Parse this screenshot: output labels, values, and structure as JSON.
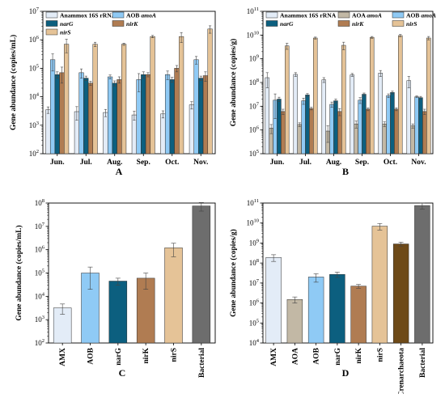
{
  "colors": {
    "Anammox": "#e3ecf7",
    "AMX": "#e3ecf7",
    "AOA": "#c2b8a5",
    "AOB": "#8fcaf5",
    "narG": "#0c5f7f",
    "nirK": "#b07c52",
    "nirS": "#e5c397",
    "Crenarchaeota": "#6e4a18",
    "Bacterial": "#6d6d6d"
  },
  "chart_data": [
    {
      "panel": "A",
      "type": "bar",
      "yscale": "log",
      "ylim_exp": [
        2,
        7
      ],
      "ylabel": "Gene abundance (copies/mL)",
      "categories": [
        "Jun.",
        "Jul.",
        "Aug.",
        "Sep.",
        "Oct.",
        "Nov."
      ],
      "legend": [
        {
          "key": "Anammox",
          "text": "Anammox 16S rRNA",
          "italic": ""
        },
        {
          "key": "AOB",
          "text": "AOB ",
          "italic": "amoA"
        },
        {
          "key": "narG",
          "text": "",
          "italic": "narG"
        },
        {
          "key": "nirK",
          "text": "",
          "italic": "nirK"
        },
        {
          "key": "nirS",
          "text": "",
          "italic": "nirS"
        }
      ],
      "series": [
        {
          "key": "Anammox",
          "values": [
            3500,
            3000,
            2800,
            2300,
            2500,
            5200
          ],
          "errors": [
            900,
            1500,
            800,
            800,
            700,
            1500
          ]
        },
        {
          "key": "AOB",
          "values": [
            200000,
            70000,
            50000,
            40000,
            60000,
            200000
          ],
          "errors": [
            120000,
            25000,
            8000,
            25000,
            20000,
            60000
          ]
        },
        {
          "key": "narG",
          "values": [
            60000,
            45000,
            30000,
            60000,
            40000,
            45000
          ],
          "errors": [
            15000,
            8000,
            6000,
            15000,
            8000,
            8000
          ]
        },
        {
          "key": "nirK",
          "values": [
            70000,
            30000,
            40000,
            60000,
            100000,
            55000
          ],
          "errors": [
            40000,
            5000,
            10000,
            10000,
            25000,
            20000
          ]
        },
        {
          "key": "nirS",
          "values": [
            700000,
            700000,
            700000,
            1300000,
            1300000,
            2400000
          ],
          "errors": [
            350000,
            120000,
            60000,
            120000,
            500000,
            700000
          ]
        }
      ]
    },
    {
      "panel": "B",
      "type": "bar",
      "yscale": "log",
      "ylim_exp": [
        5,
        11
      ],
      "ylabel": "Gene abundance (copies/g)",
      "categories": [
        "Jun.",
        "Jul.",
        "Aug.",
        "Sep.",
        "Oct.",
        "Nov."
      ],
      "legend": [
        {
          "key": "Anammox",
          "text": "Anammox 16S rRNA",
          "italic": ""
        },
        {
          "key": "AOA",
          "text": "AOA ",
          "italic": "amoA"
        },
        {
          "key": "AOB",
          "text": "AOB ",
          "italic": "amoA"
        },
        {
          "key": "narG",
          "text": "",
          "italic": "narG"
        },
        {
          "key": "nirK",
          "text": "",
          "italic": "nirK"
        },
        {
          "key": "nirS",
          "text": "",
          "italic": "nirS"
        }
      ],
      "series": [
        {
          "key": "Anammox",
          "values": [
            160000000,
            220000000,
            130000000,
            210000000,
            250000000,
            120000000
          ],
          "errors": [
            100000000,
            40000000,
            30000000,
            30000000,
            70000000,
            60000000
          ]
        },
        {
          "key": "AOA",
          "values": [
            1200000,
            1700000,
            900000,
            1800000,
            1800000,
            1500000
          ],
          "errors": [
            500000,
            300000,
            600000,
            600000,
            400000,
            300000
          ]
        },
        {
          "key": "AOB",
          "values": [
            18000000,
            17000000,
            12000000,
            18000000,
            28000000,
            25000000
          ],
          "errors": [
            15000000,
            5000000,
            3000000,
            5000000,
            5000000,
            2000000
          ]
        },
        {
          "key": "narG",
          "values": [
            20000000,
            30000000,
            17000000,
            32000000,
            38000000,
            23000000
          ],
          "errors": [
            4000000,
            4000000,
            3000000,
            4000000,
            5000000,
            3000000
          ]
        },
        {
          "key": "nirK",
          "values": [
            6000000,
            8000000,
            6000000,
            7500000,
            7500000,
            6000000
          ],
          "errors": [
            1500000,
            1000000,
            2000000,
            1000000,
            1000000,
            1500000
          ]
        },
        {
          "key": "nirS",
          "values": [
            3500000000,
            7500000000,
            3700000000,
            8000000000,
            9500000000,
            7500000000
          ],
          "errors": [
            1000000000,
            700000000,
            1300000000,
            700000000,
            1000000000,
            1200000000
          ]
        }
      ]
    },
    {
      "panel": "C",
      "type": "bar",
      "yscale": "log",
      "ylim_exp": [
        2,
        8
      ],
      "ylabel": "Gene abundance (copies/mL)",
      "categories": [
        "AMX",
        "AOB",
        "narG",
        "nirK",
        "nirS",
        "Bacterial"
      ],
      "category_keys": [
        "AMX",
        "AOB",
        "narG",
        "nirK",
        "nirS",
        "Bacterial"
      ],
      "values": [
        3200,
        100000,
        45000,
        60000,
        1200000,
        75000000
      ],
      "errors": [
        1500,
        80000,
        15000,
        40000,
        700000,
        30000000
      ]
    },
    {
      "panel": "D",
      "type": "bar",
      "yscale": "log",
      "ylim_exp": [
        4,
        11
      ],
      "ylabel": "Gene abundance (copies/g)",
      "categories": [
        "AMX",
        "AOA",
        "AOB",
        "narG",
        "nirK",
        "nirS",
        "Crenarchaeota",
        "Bacterial"
      ],
      "category_keys": [
        "AMX",
        "AOA",
        "AOB",
        "narG",
        "nirK",
        "nirS",
        "Crenarchaeota",
        "Bacterial"
      ],
      "values": [
        190000000,
        1500000,
        20000000,
        27000000,
        7000000,
        7000000000,
        900000000,
        75000000000
      ],
      "errors": [
        70000000,
        500000,
        9000000,
        8000000,
        1500000,
        2500000000,
        200000000,
        25000000000
      ]
    }
  ]
}
